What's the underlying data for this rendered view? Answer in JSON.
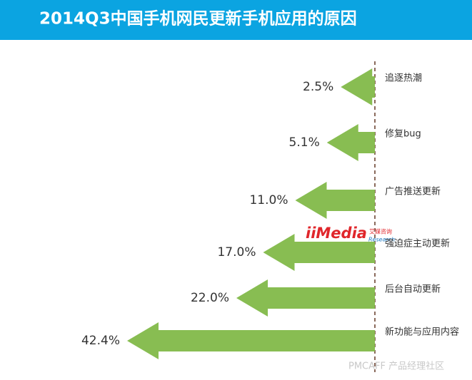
{
  "chart_data": {
    "type": "arrow-bar",
    "title": "2014Q3中国手机网民更新手机应用的原因",
    "categories": [
      "追逐热潮",
      "修复bug",
      "广告推送更新",
      "强迫症主动更新",
      "后台自动更新",
      "新功能与应用内容"
    ],
    "values": [
      2.5,
      5.1,
      11.0,
      17.0,
      22.0,
      42.4
    ],
    "value_labels": [
      "2.5%",
      "5.1%",
      "11.0%",
      "17.0%",
      "22.0%",
      "42.4%"
    ],
    "color": "#88bd52",
    "header_color": "#0ba4e1",
    "watermarks": [
      "iiMedia",
      "艾媒咨询",
      "Research",
      "PMCAFF 产品经理社区"
    ]
  }
}
